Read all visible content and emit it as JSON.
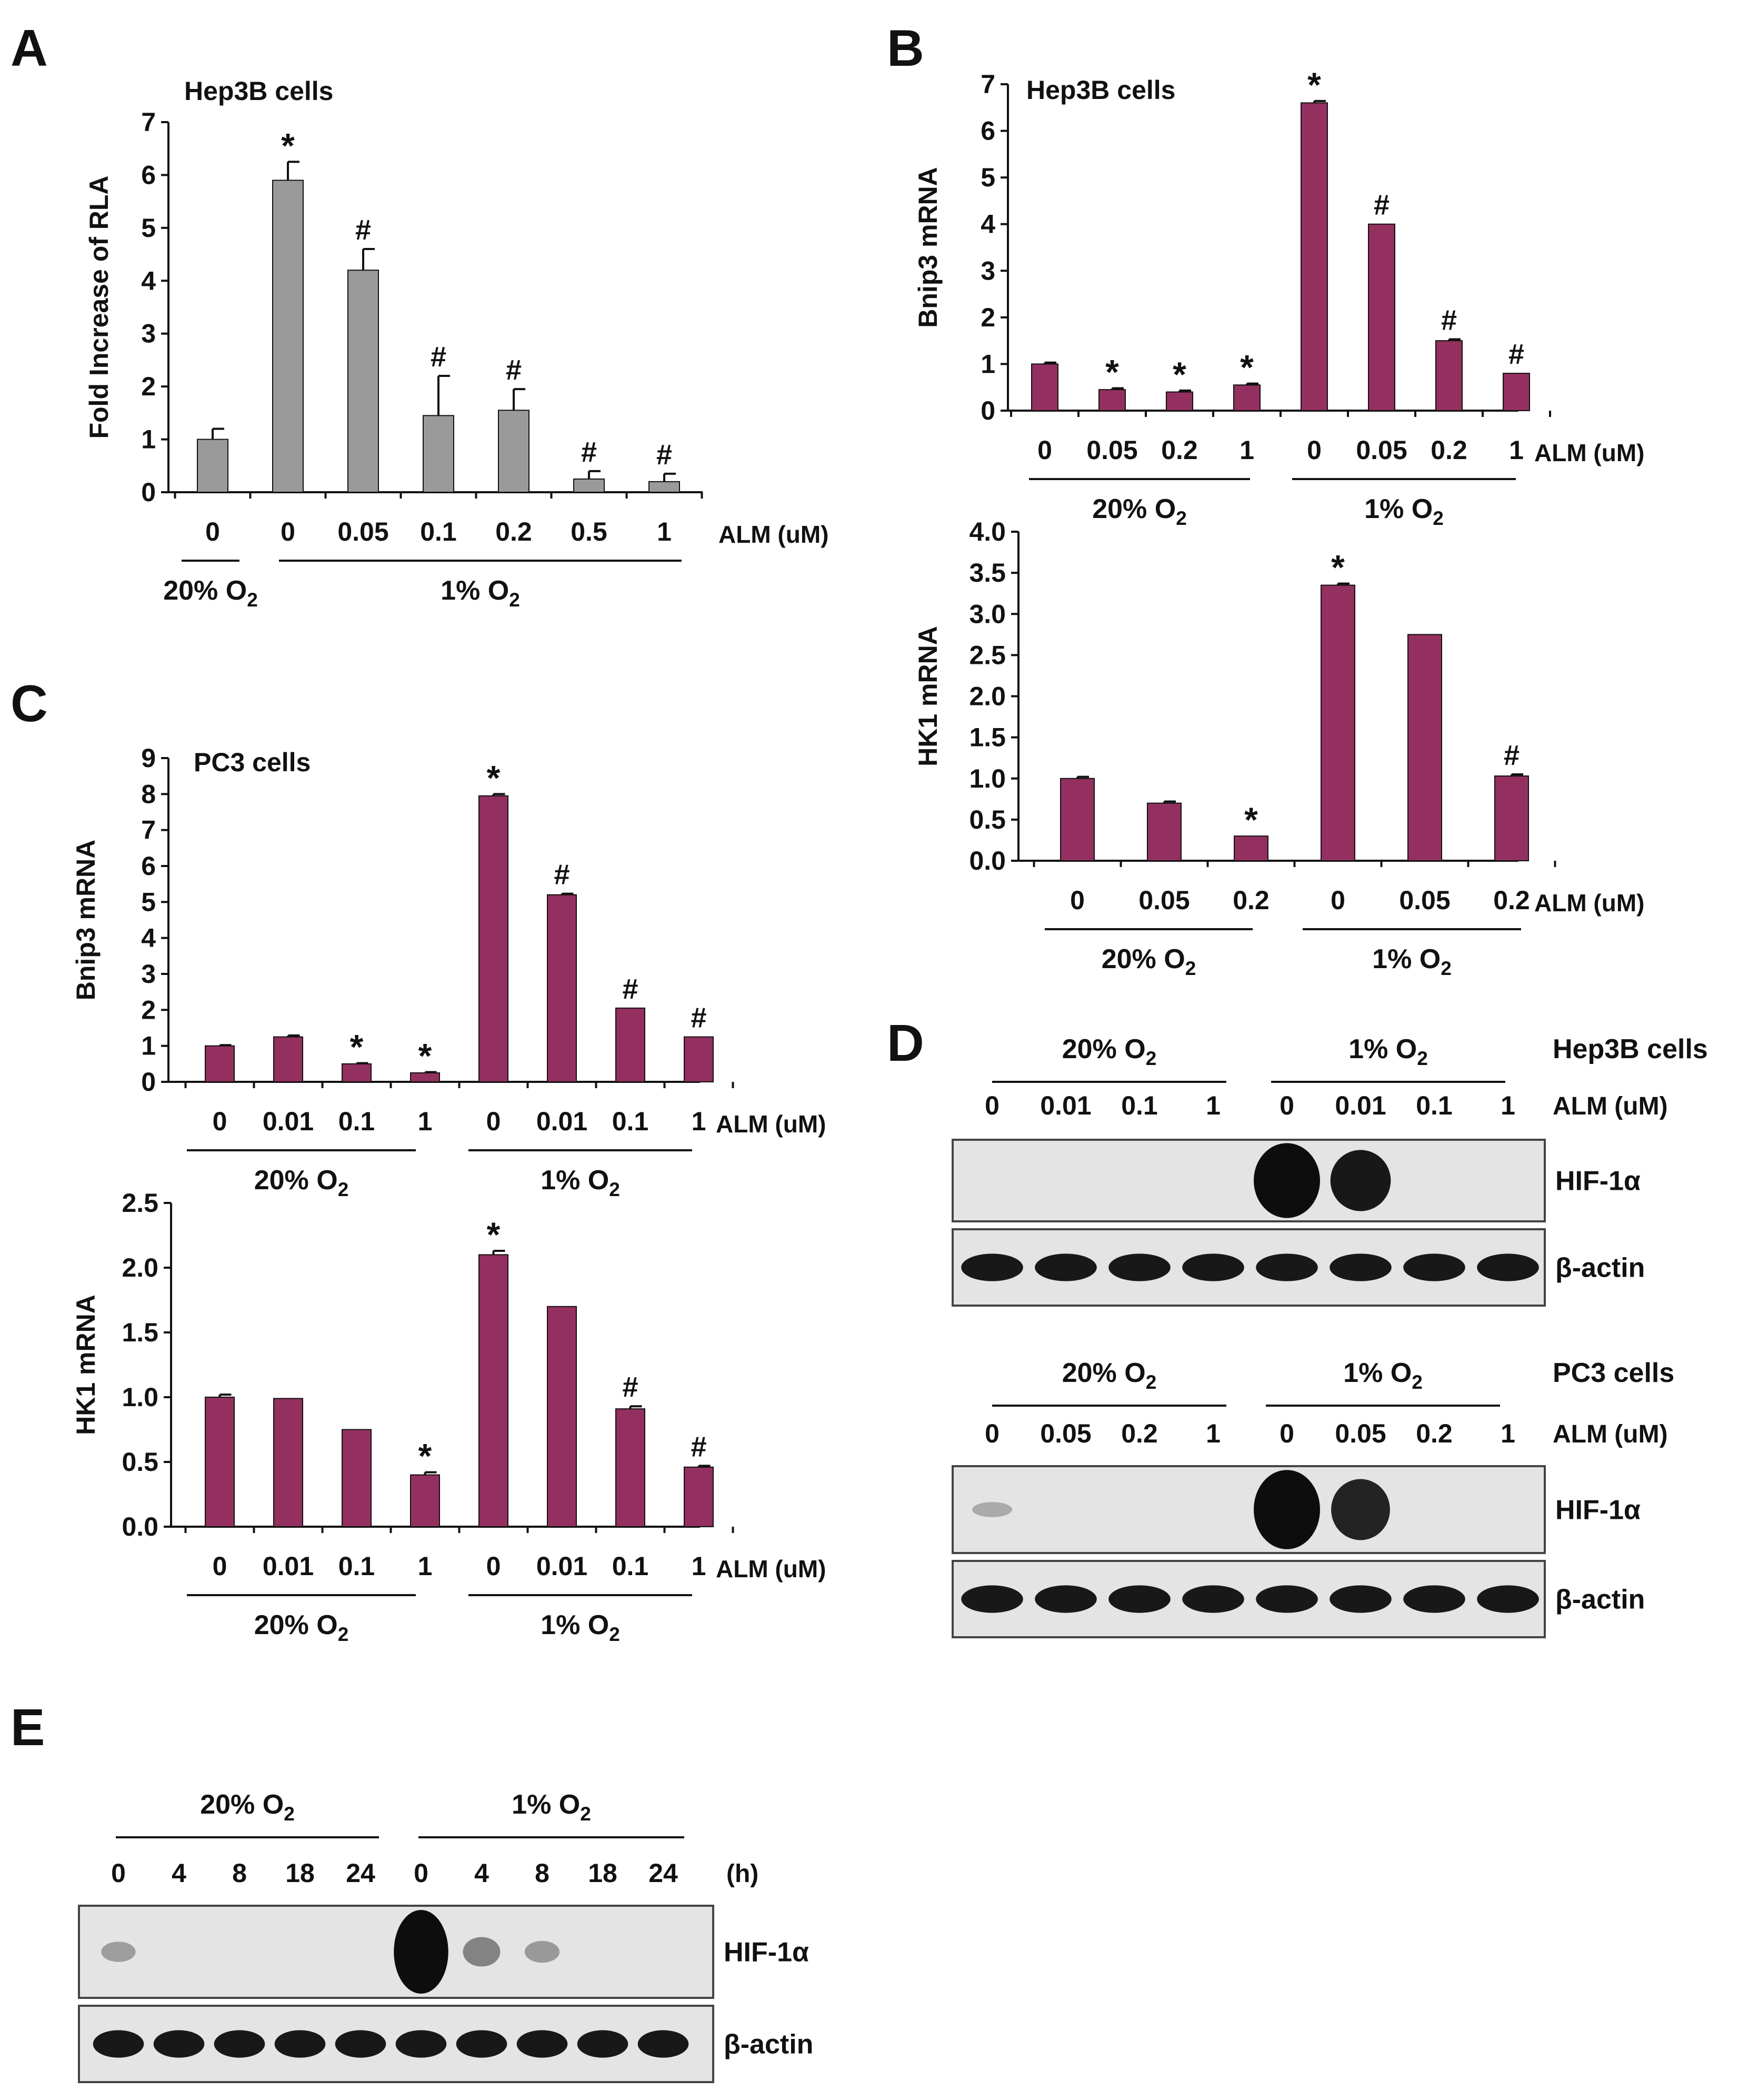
{
  "panel_letters": [
    "A",
    "B",
    "C",
    "D",
    "E"
  ],
  "colors": {
    "bar_gray": "#9a9a9a",
    "bar_maroon": "#943060",
    "axis": "#111111",
    "blot_bg": "#e4e4e4",
    "band": "#0d0d0d"
  },
  "chart_data": [
    {
      "id": "A",
      "type": "bar",
      "title": "Hep3B cells",
      "ylabel": "Fold Increase of RLA",
      "ylim": [
        0,
        7
      ],
      "yticks": [
        0,
        1,
        2,
        3,
        4,
        5,
        6,
        7
      ],
      "categories": [
        "0",
        "0",
        "0.05",
        "0.1",
        "0.2",
        "0.5",
        "1"
      ],
      "values": [
        1.0,
        5.9,
        4.2,
        1.45,
        1.55,
        0.25,
        0.2
      ],
      "errors": [
        0.2,
        0.35,
        0.4,
        0.75,
        0.4,
        0.15,
        0.15
      ],
      "markers": [
        "",
        "*",
        "#",
        "#",
        "#",
        "#",
        "#"
      ],
      "xlabel": "ALM  (uM)",
      "groups": [
        {
          "label": "20% O",
          "sub": "2",
          "from": 0,
          "to": 0
        },
        {
          "label": "1% O",
          "sub": "2",
          "from": 1,
          "to": 6
        }
      ]
    },
    {
      "id": "B1",
      "type": "bar",
      "title": "Hep3B cells",
      "ylabel": "Bnip3 mRNA",
      "ylim": [
        0,
        7
      ],
      "yticks": [
        0,
        1,
        2,
        3,
        4,
        5,
        6,
        7
      ],
      "categories": [
        "0",
        "0.05",
        "0.2",
        "1",
        "0",
        "0.05",
        "0.2",
        "1"
      ],
      "values": [
        1.0,
        0.45,
        0.4,
        0.55,
        6.6,
        4.0,
        1.5,
        0.8
      ],
      "errors": [
        0.03,
        0.03,
        0.03,
        0.03,
        0.04,
        0,
        0.03,
        0
      ],
      "markers": [
        "",
        "*",
        "*",
        "*",
        "*",
        "#",
        "#",
        "#"
      ],
      "xlabel": "ALM (uM)",
      "groups": [
        {
          "label": "20% O",
          "sub": "2",
          "from": 0,
          "to": 3
        },
        {
          "label": "1% O",
          "sub": "2",
          "from": 4,
          "to": 7
        }
      ]
    },
    {
      "id": "B2",
      "type": "bar",
      "title": "",
      "ylabel": "HK1 mRNA",
      "ylim": [
        0,
        4.0
      ],
      "yticks": [
        0,
        0.5,
        1.0,
        1.5,
        2.0,
        2.5,
        3.0,
        3.5,
        4.0
      ],
      "categories": [
        "0",
        "0.05",
        "0.2",
        "0",
        "0.05",
        "0.2"
      ],
      "values": [
        1.0,
        0.7,
        0.3,
        3.35,
        2.75,
        1.03
      ],
      "errors": [
        0.02,
        0.02,
        0,
        0.02,
        0,
        0.02
      ],
      "markers": [
        "",
        "",
        "*",
        "*",
        "",
        "#"
      ],
      "xlabel": "ALM (uM)",
      "groups": [
        {
          "label": "20% O",
          "sub": "2",
          "from": 0,
          "to": 2
        },
        {
          "label": "1% O",
          "sub": "2",
          "from": 3,
          "to": 5
        }
      ]
    },
    {
      "id": "C1",
      "type": "bar",
      "title": "PC3 cells",
      "ylabel": "Bnip3 mRNA",
      "ylim": [
        0,
        9
      ],
      "yticks": [
        0,
        1,
        2,
        3,
        4,
        5,
        6,
        7,
        8,
        9
      ],
      "categories": [
        "0",
        "0.01",
        "0.1",
        "1",
        "0",
        "0.01",
        "0.1",
        "1"
      ],
      "values": [
        1.0,
        1.25,
        0.5,
        0.25,
        7.95,
        5.2,
        2.05,
        1.25
      ],
      "errors": [
        0.02,
        0.04,
        0.02,
        0.02,
        0.05,
        0.03,
        0,
        0
      ],
      "markers": [
        "",
        "",
        "*",
        "*",
        "*",
        "#",
        "#",
        "#"
      ],
      "xlabel": "ALM (uM)",
      "groups": [
        {
          "label": "20% O",
          "sub": "2",
          "from": 0,
          "to": 3
        },
        {
          "label": "1% O",
          "sub": "2",
          "from": 4,
          "to": 7
        }
      ]
    },
    {
      "id": "C2",
      "type": "bar",
      "title": "",
      "ylabel": "HK1 mRNA",
      "ylim": [
        0,
        2.5
      ],
      "yticks": [
        0,
        0.5,
        1.0,
        1.5,
        2.0,
        2.5
      ],
      "categories": [
        "0",
        "0.01",
        "0.1",
        "1",
        "0",
        "0.01",
        "0.1",
        "1"
      ],
      "values": [
        1.0,
        0.99,
        0.75,
        0.4,
        2.1,
        1.7,
        0.91,
        0.46
      ],
      "errors": [
        0.02,
        0,
        0,
        0.02,
        0.03,
        0,
        0.02,
        0.01
      ],
      "markers": [
        "",
        "",
        "",
        "*",
        "*",
        "",
        "#",
        "#"
      ],
      "xlabel": "ALM (uM)",
      "groups": [
        {
          "label": "20% O",
          "sub": "2",
          "from": 0,
          "to": 3
        },
        {
          "label": "1% O",
          "sub": "2",
          "from": 4,
          "to": 7
        }
      ]
    }
  ],
  "blots": [
    {
      "id": "D1",
      "cells": "Hep3B cells",
      "unit": "ALM (uM)",
      "groups": [
        {
          "label": "20% O",
          "sub": "2"
        },
        {
          "label": "1% O",
          "sub": "2"
        }
      ],
      "lanes": [
        "0",
        "0.01",
        "0.1",
        "1",
        "0",
        "0.01",
        "0.1",
        "1"
      ],
      "rows": [
        {
          "label": "HIF-1α",
          "intensity": [
            0,
            0,
            0,
            0,
            1.0,
            0.8,
            0,
            0
          ]
        },
        {
          "label": "β-actin",
          "intensity": [
            1,
            1,
            1,
            1,
            1,
            1,
            1,
            1
          ]
        }
      ]
    },
    {
      "id": "D2",
      "cells": "PC3 cells",
      "unit": "ALM (uM)",
      "groups": [
        {
          "label": "20% O",
          "sub": "2"
        },
        {
          "label": "1% O",
          "sub": "2"
        }
      ],
      "lanes": [
        "0",
        "0.05",
        "0.2",
        "1",
        "0",
        "0.05",
        "0.2",
        "1"
      ],
      "rows": [
        {
          "label": "HIF-1α",
          "intensity": [
            0.12,
            0,
            0,
            0,
            1.0,
            0.75,
            0,
            0
          ]
        },
        {
          "label": "β-actin",
          "intensity": [
            1,
            1,
            1,
            1,
            1,
            1,
            1,
            1
          ]
        }
      ]
    },
    {
      "id": "E",
      "cells": "",
      "unit": "(h)",
      "groups": [
        {
          "label": "20% O",
          "sub": "2"
        },
        {
          "label": "1% O",
          "sub": "2"
        }
      ],
      "lanes": [
        "0",
        "4",
        "8",
        "18",
        "24",
        "0",
        "4",
        "8",
        "18",
        "24"
      ],
      "rows": [
        {
          "label": "HIF-1α",
          "intensity": [
            0.18,
            0,
            0,
            0,
            0,
            1.0,
            0.3,
            0.2,
            0,
            0
          ]
        },
        {
          "label": "β-actin",
          "intensity": [
            1,
            1,
            1,
            1,
            1,
            1,
            1,
            1,
            1,
            1
          ]
        }
      ]
    }
  ]
}
